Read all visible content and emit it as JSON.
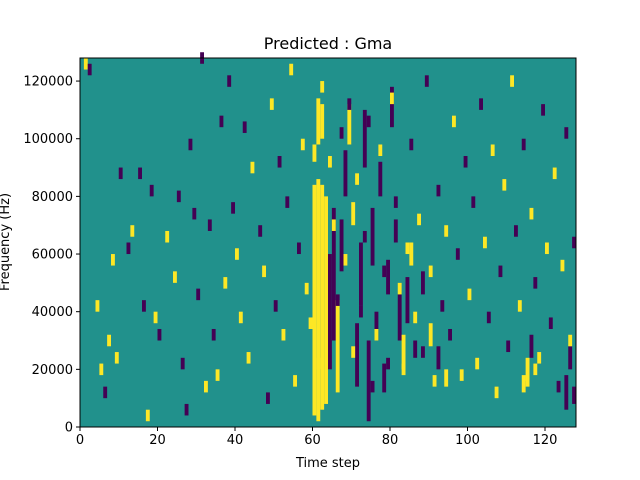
{
  "chart_data": {
    "type": "heatmap",
    "title": "Predicted : Gma",
    "xlabel": "Time step",
    "ylabel": "Frequency (Hz)",
    "xlim": [
      0,
      128
    ],
    "ylim": [
      0,
      128000
    ],
    "x_ticks": [
      0,
      20,
      40,
      60,
      80,
      100,
      120
    ],
    "x_tick_labels": [
      "0",
      "20",
      "40",
      "60",
      "80",
      "100",
      "120"
    ],
    "y_ticks": [
      0,
      20000,
      40000,
      60000,
      80000,
      100000,
      120000
    ],
    "y_tick_labels": [
      "0",
      "20000",
      "40000",
      "60000",
      "80000",
      "100000",
      "120000"
    ],
    "grid": false,
    "legend": "none",
    "colors": {
      "background_level": "#21918c",
      "high_level": "#fde725",
      "low_level": "#440154"
    },
    "cell_levels": [
      -1,
      0,
      1
    ],
    "cell_size": {
      "time_steps": 1,
      "frequency_hz": 2000
    },
    "cells": [
      [
        1,
        124000,
        1
      ],
      [
        2,
        122000,
        -1
      ],
      [
        4,
        40000,
        1
      ],
      [
        5,
        18000,
        1
      ],
      [
        6,
        10000,
        -1
      ],
      [
        7,
        28000,
        1
      ],
      [
        8,
        56000,
        1
      ],
      [
        9,
        22000,
        1
      ],
      [
        10,
        86000,
        -1
      ],
      [
        12,
        60000,
        -1
      ],
      [
        13,
        66000,
        1
      ],
      [
        15,
        86000,
        -1
      ],
      [
        16,
        40000,
        -1
      ],
      [
        17,
        2000,
        1
      ],
      [
        18,
        80000,
        -1
      ],
      [
        19,
        36000,
        1
      ],
      [
        20,
        30000,
        -1
      ],
      [
        22,
        64000,
        1
      ],
      [
        24,
        50000,
        1
      ],
      [
        25,
        78000,
        -1
      ],
      [
        26,
        20000,
        -1
      ],
      [
        27,
        4000,
        -1
      ],
      [
        28,
        96000,
        -1
      ],
      [
        29,
        72000,
        -1
      ],
      [
        30,
        44000,
        -1
      ],
      [
        31,
        126000,
        -1
      ],
      [
        32,
        12000,
        1
      ],
      [
        33,
        68000,
        -1
      ],
      [
        34,
        30000,
        -1
      ],
      [
        35,
        16000,
        1
      ],
      [
        36,
        104000,
        -1
      ],
      [
        37,
        48000,
        1
      ],
      [
        38,
        118000,
        -1
      ],
      [
        39,
        74000,
        -1
      ],
      [
        40,
        58000,
        1
      ],
      [
        41,
        36000,
        1
      ],
      [
        42,
        102000,
        -1
      ],
      [
        43,
        22000,
        1
      ],
      [
        44,
        88000,
        1
      ],
      [
        46,
        66000,
        -1
      ],
      [
        47,
        52000,
        1
      ],
      [
        48,
        8000,
        -1
      ],
      [
        49,
        110000,
        1
      ],
      [
        50,
        40000,
        -1
      ],
      [
        51,
        90000,
        -1
      ],
      [
        52,
        30000,
        1
      ],
      [
        53,
        76000,
        -1
      ],
      [
        54,
        122000,
        1
      ],
      [
        55,
        14000,
        1
      ],
      [
        56,
        60000,
        -1
      ],
      [
        57,
        96000,
        1
      ],
      [
        58,
        46000,
        1
      ],
      [
        59,
        34000,
        1
      ],
      [
        61,
        20000,
        1
      ],
      [
        62,
        116000,
        1
      ],
      [
        64,
        90000,
        1
      ],
      [
        65,
        68000,
        1
      ],
      [
        66,
        42000,
        -1
      ],
      [
        67,
        100000,
        -1
      ],
      [
        68,
        56000,
        1
      ],
      [
        69,
        110000,
        -1
      ],
      [
        70,
        24000,
        1
      ],
      [
        71,
        84000,
        1
      ],
      [
        72,
        38000,
        -1
      ],
      [
        73,
        64000,
        -1
      ],
      [
        74,
        104000,
        -1
      ],
      [
        75,
        12000,
        -1
      ],
      [
        76,
        30000,
        1
      ],
      [
        77,
        94000,
        1
      ],
      [
        78,
        52000,
        -1
      ],
      [
        79,
        20000,
        -1
      ],
      [
        80,
        112000,
        1
      ],
      [
        81,
        76000,
        -1
      ],
      [
        82,
        46000,
        1
      ],
      [
        83,
        18000,
        1
      ],
      [
        84,
        60000,
        1
      ],
      [
        85,
        96000,
        -1
      ],
      [
        86,
        36000,
        1
      ],
      [
        87,
        70000,
        1
      ],
      [
        88,
        24000,
        -1
      ],
      [
        89,
        118000,
        -1
      ],
      [
        90,
        52000,
        1
      ],
      [
        91,
        14000,
        1
      ],
      [
        92,
        80000,
        -1
      ],
      [
        93,
        40000,
        -1
      ],
      [
        94,
        66000,
        1
      ],
      [
        95,
        30000,
        -1
      ],
      [
        96,
        104000,
        1
      ],
      [
        97,
        58000,
        -1
      ],
      [
        98,
        16000,
        1
      ],
      [
        99,
        90000,
        -1
      ],
      [
        100,
        44000,
        1
      ],
      [
        101,
        76000,
        -1
      ],
      [
        102,
        20000,
        1
      ],
      [
        103,
        110000,
        -1
      ],
      [
        104,
        62000,
        1
      ],
      [
        105,
        36000,
        -1
      ],
      [
        106,
        94000,
        1
      ],
      [
        107,
        10000,
        1
      ],
      [
        108,
        52000,
        -1
      ],
      [
        109,
        82000,
        1
      ],
      [
        110,
        26000,
        -1
      ],
      [
        111,
        118000,
        1
      ],
      [
        112,
        66000,
        -1
      ],
      [
        113,
        40000,
        1
      ],
      [
        114,
        96000,
        -1
      ],
      [
        115,
        14000,
        1
      ],
      [
        116,
        72000,
        1
      ],
      [
        117,
        48000,
        -1
      ],
      [
        118,
        22000,
        1
      ],
      [
        119,
        108000,
        -1
      ],
      [
        120,
        60000,
        1
      ],
      [
        121,
        34000,
        -1
      ],
      [
        122,
        86000,
        1
      ],
      [
        123,
        12000,
        -1
      ],
      [
        124,
        54000,
        1
      ],
      [
        125,
        100000,
        -1
      ],
      [
        126,
        28000,
        1
      ],
      [
        127,
        62000,
        -1
      ]
    ],
    "band_cells": [
      [
        60,
        4000,
        84000,
        1
      ],
      [
        61,
        2000,
        86000,
        1
      ],
      [
        62,
        6000,
        84000,
        1
      ],
      [
        63,
        8000,
        80000,
        1
      ],
      [
        60,
        92000,
        98000,
        1
      ],
      [
        61,
        98000,
        114000,
        1
      ],
      [
        62,
        100000,
        112000,
        1
      ],
      [
        64,
        20000,
        60000,
        -1
      ],
      [
        65,
        30000,
        76000,
        -1
      ],
      [
        66,
        12000,
        44000,
        1
      ],
      [
        67,
        54000,
        72000,
        -1
      ],
      [
        68,
        80000,
        96000,
        -1
      ],
      [
        69,
        98000,
        112000,
        1
      ],
      [
        70,
        70000,
        78000,
        1
      ],
      [
        71,
        14000,
        36000,
        -1
      ],
      [
        72,
        42000,
        64000,
        -1
      ],
      [
        73,
        90000,
        110000,
        -1
      ],
      [
        74,
        2000,
        30000,
        -1
      ],
      [
        75,
        56000,
        76000,
        -1
      ],
      [
        76,
        30000,
        40000,
        -1
      ],
      [
        77,
        80000,
        92000,
        -1
      ],
      [
        78,
        12000,
        22000,
        -1
      ],
      [
        79,
        46000,
        58000,
        -1
      ],
      [
        80,
        104000,
        118000,
        -1
      ],
      [
        81,
        64000,
        72000,
        -1
      ],
      [
        82,
        30000,
        46000,
        -1
      ],
      [
        83,
        20000,
        32000,
        1
      ],
      [
        84,
        36000,
        52000,
        -1
      ],
      [
        85,
        56000,
        64000,
        1
      ],
      [
        86,
        24000,
        30000,
        -1
      ],
      [
        88,
        46000,
        54000,
        -1
      ],
      [
        90,
        28000,
        36000,
        1
      ],
      [
        92,
        20000,
        28000,
        -1
      ],
      [
        94,
        14000,
        20000,
        1
      ],
      [
        114,
        12000,
        18000,
        1
      ],
      [
        115,
        16000,
        24000,
        1
      ],
      [
        116,
        24000,
        32000,
        -1
      ],
      [
        117,
        18000,
        22000,
        1
      ],
      [
        125,
        6000,
        18000,
        -1
      ],
      [
        126,
        20000,
        28000,
        -1
      ],
      [
        127,
        8000,
        14000,
        -1
      ]
    ]
  }
}
